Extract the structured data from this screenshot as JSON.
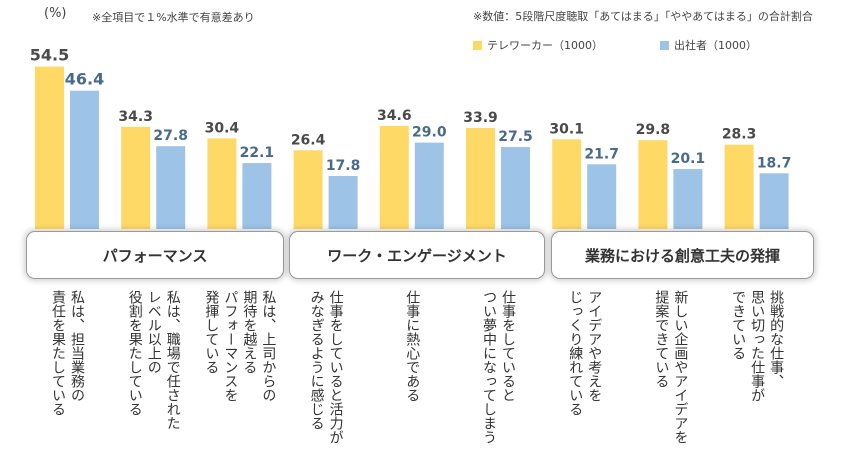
{
  "unit_label": "(%)",
  "note_significance": "※全項目で１%水準で有意差あり",
  "note_values": "※数値：5段階尺度聴取「あてはまる」「ややあてはまる」の合計割合",
  "colors": {
    "telework": "#FFD966",
    "office": "#9DC3E6"
  },
  "legend": [
    {
      "label": "テレワーカー（1000）",
      "color": "#FFD966"
    },
    {
      "label": "出社者（1000）",
      "color": "#9DC3E6"
    }
  ],
  "groups": [
    "パフォーマンス",
    "ワーク・エンゲージメント",
    "業務における創意工夫の発揮"
  ],
  "chart_data": {
    "type": "bar",
    "title": "",
    "ylabel": "(%)",
    "ylim": [
      0,
      60
    ],
    "categories": [
      "私は、担当業務の責任を果たしている",
      "私は、職場で任されたレベル以上の役割を果たしている",
      "私は、上司からの期待を越えるパフォーマンスを発揮している",
      "仕事をしていると活力がみなぎるように感じる",
      "仕事に熱心である",
      "仕事をしているとつい夢中になってしまう",
      "アイデアや考えをじっくり練れている",
      "新しい企画やアイデアを提案できている",
      "挑戦的な仕事、思い切った仕事ができている"
    ],
    "series": [
      {
        "name": "テレワーカー（1000）",
        "values": [
          54.5,
          34.3,
          30.4,
          26.4,
          34.6,
          33.9,
          30.1,
          29.8,
          28.3
        ]
      },
      {
        "name": "出社者（1000）",
        "values": [
          46.4,
          27.8,
          22.1,
          17.8,
          29.0,
          27.5,
          21.7,
          20.1,
          18.7
        ]
      }
    ]
  },
  "category_lines": [
    [
      "私は、担当業務の",
      "責任を果たしている"
    ],
    [
      "私は、職場で任された",
      "レベル以上の",
      "役割を果たしている"
    ],
    [
      "私は、上司からの",
      "期待を越える",
      "パフォーマンスを",
      "発揮している"
    ],
    [
      "仕事をしていると活力が",
      "みなぎるように感じる"
    ],
    [
      "仕事に熱心である"
    ],
    [
      "仕事をしていると",
      "つい夢中になってしまう"
    ],
    [
      "アイデアや考えを",
      "じっくり練れている"
    ],
    [
      "新しい企画やアイデアを",
      "提案できている"
    ],
    [
      "挑戦的な仕事、",
      "思い切った仕事が",
      "できている"
    ]
  ]
}
